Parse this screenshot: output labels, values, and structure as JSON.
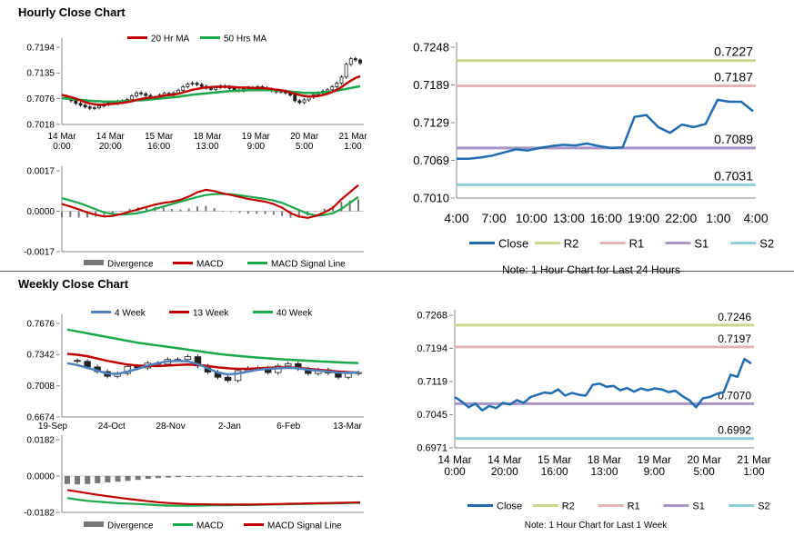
{
  "sections": {
    "hourly_title": "Hourly Close Chart",
    "weekly_title": "Weekly Close Chart"
  },
  "colors": {
    "close": "#1f6cb0",
    "r2": "#c7d98c",
    "r1": "#e5b5b5",
    "s1": "#a795c8",
    "s2": "#8fd0db",
    "ma_red": "#c00000",
    "ma_green": "#1aa84a",
    "ma_blue": "#4f81bd",
    "divergence": "#777777",
    "candle": "#222222"
  },
  "chart_data": [
    {
      "id": "hourly_price",
      "type": "candlestick",
      "legend": [
        "20 Hr MA",
        "50 Hrs MA"
      ],
      "y_ticks": [
        "0.7194",
        "0.7135",
        "0.7076",
        "0.7018"
      ],
      "ylim": [
        0.7018,
        0.7194
      ],
      "x_ticks": [
        "14 Mar\n0:00",
        "14 Mar\n20:00",
        "15 Mar\n16:00",
        "18 Mar\n13:00",
        "19 Mar\n9:00",
        "20 Mar\n5:00",
        "21 Mar\n1:00"
      ],
      "close": [
        0.7082,
        0.7078,
        0.7072,
        0.7066,
        0.7062,
        0.7058,
        0.7055,
        0.7056,
        0.706,
        0.7064,
        0.7067,
        0.7066,
        0.707,
        0.7072,
        0.7075,
        0.7083,
        0.709,
        0.7088,
        0.7084,
        0.7079,
        0.708,
        0.7085,
        0.7089,
        0.7086,
        0.709,
        0.7096,
        0.7104,
        0.711,
        0.7112,
        0.7109,
        0.7105,
        0.7101,
        0.7098,
        0.7102,
        0.7106,
        0.7104,
        0.71,
        0.7096,
        0.7095,
        0.7099,
        0.7102,
        0.71,
        0.7104,
        0.7101,
        0.7098,
        0.7095,
        0.7092,
        0.7094,
        0.709,
        0.7085,
        0.7072,
        0.7068,
        0.7074,
        0.708,
        0.7086,
        0.709,
        0.7094,
        0.7097,
        0.7104,
        0.7112,
        0.7126,
        0.7155,
        0.7168,
        0.7165,
        0.7158
      ],
      "ma20": [
        0.7085,
        0.7083,
        0.708,
        0.7077,
        0.7073,
        0.7069,
        0.7066,
        0.7064,
        0.7063,
        0.7063,
        0.7064,
        0.7065,
        0.7066,
        0.7067,
        0.7069,
        0.7071,
        0.7074,
        0.7076,
        0.7078,
        0.7079,
        0.708,
        0.7082,
        0.7084,
        0.7085,
        0.7086,
        0.7088,
        0.7091,
        0.7094,
        0.7097,
        0.7099,
        0.7101,
        0.7102,
        0.7103,
        0.7104,
        0.7104,
        0.7104,
        0.7104,
        0.7103,
        0.7102,
        0.7102,
        0.7102,
        0.7101,
        0.7101,
        0.7101,
        0.71,
        0.7099,
        0.7097,
        0.7096,
        0.7094,
        0.7091,
        0.7088,
        0.7085,
        0.7083,
        0.7082,
        0.7082,
        0.7083,
        0.7085,
        0.7088,
        0.7092,
        0.7097,
        0.7103,
        0.7111,
        0.7118,
        0.7124,
        0.7128
      ],
      "ma50": [
        0.7078,
        0.7077,
        0.7076,
        0.7075,
        0.7074,
        0.7073,
        0.7072,
        0.7071,
        0.7071,
        0.707,
        0.707,
        0.707,
        0.707,
        0.7071,
        0.7071,
        0.7072,
        0.7073,
        0.7073,
        0.7074,
        0.7075,
        0.7076,
        0.7077,
        0.7078,
        0.7079,
        0.708,
        0.7081,
        0.7083,
        0.7084,
        0.7086,
        0.7087,
        0.7088,
        0.7089,
        0.709,
        0.7091,
        0.7092,
        0.7093,
        0.7094,
        0.7094,
        0.7095,
        0.7095,
        0.7096,
        0.7096,
        0.7096,
        0.7096,
        0.7096,
        0.7096,
        0.7095,
        0.7095,
        0.7094,
        0.7093,
        0.7092,
        0.7091,
        0.709,
        0.709,
        0.709,
        0.709,
        0.7091,
        0.7092,
        0.7093,
        0.7095,
        0.7097,
        0.7099,
        0.7101,
        0.7103,
        0.7105
      ]
    },
    {
      "id": "hourly_macd",
      "type": "macd",
      "legend": [
        "Divergence",
        "MACD",
        "MACD Signal Line"
      ],
      "y_ticks": [
        "0.0017",
        "0.0000",
        "-0.0017"
      ],
      "ylim": [
        -0.0017,
        0.0017
      ],
      "macd": [
        0.0003,
        0.0002,
        8e-05,
        -5e-05,
        -0.00015,
        -0.00022,
        -0.0002,
        -0.00012,
        -2e-05,
        8e-05,
        0.00018,
        0.00028,
        0.00035,
        0.0004,
        0.00048,
        0.00062,
        0.0008,
        0.0009,
        0.00085,
        0.00075,
        0.00068,
        0.0006,
        0.00052,
        0.00046,
        0.0004,
        0.0003,
        0.00015,
        -8e-05,
        -0.00022,
        -0.00028,
        -0.0002,
        -5e-05,
        0.00015,
        0.0005,
        0.0008,
        0.0011
      ],
      "signal": [
        0.00055,
        0.00045,
        0.00035,
        0.00022,
        8e-05,
        -5e-05,
        -0.00012,
        -0.00014,
        -0.00012,
        -8e-05,
        0.0,
        0.0001,
        0.0002,
        0.0003,
        0.0004,
        0.0005,
        0.0006,
        0.00068,
        0.00072,
        0.00073,
        0.00071,
        0.00067,
        0.00062,
        0.00057,
        0.00052,
        0.00045,
        0.00035,
        0.0002,
        5e-05,
        -0.0001,
        -0.00018,
        -0.00016,
        -8e-05,
        0.0001,
        0.00035,
        0.0006
      ]
    },
    {
      "id": "hourly_line",
      "type": "line",
      "y_ticks": [
        "0.7248",
        "0.7189",
        "0.7129",
        "0.7069",
        "0.7010"
      ],
      "ylim": [
        0.701,
        0.7248
      ],
      "x_ticks": [
        "4:00",
        "7:00",
        "10:00",
        "13:00",
        "16:00",
        "19:00",
        "22:00",
        "1:00",
        "4:00"
      ],
      "close": [
        0.7072,
        0.7072,
        0.7074,
        0.7077,
        0.7082,
        0.7087,
        0.7085,
        0.7089,
        0.7092,
        0.7094,
        0.7093,
        0.7096,
        0.7092,
        0.7089,
        0.709,
        0.7138,
        0.7141,
        0.7122,
        0.7113,
        0.7126,
        0.7122,
        0.7127,
        0.7165,
        0.7162,
        0.7162,
        0.7147
      ],
      "levels": [
        {
          "name": "R2",
          "value": "0.7227"
        },
        {
          "name": "R1",
          "value": "0.7187"
        },
        {
          "name": "S1",
          "value": "0.7089"
        },
        {
          "name": "S2",
          "value": "0.7031"
        }
      ],
      "legend": [
        "Close",
        "R2",
        "R1",
        "S1",
        "S2"
      ],
      "note": "Note: 1 Hour Chart for Last 24 Hours"
    },
    {
      "id": "weekly_price",
      "type": "candlestick",
      "legend": [
        "4 Week",
        "13 Week",
        "40 Week"
      ],
      "y_ticks": [
        "0.7676",
        "0.7342",
        "0.7008",
        "0.6674"
      ],
      "ylim": [
        0.6674,
        0.7676
      ],
      "x_ticks": [
        "19-Sep",
        "24-Oct",
        "28-Nov",
        "2-Jan",
        "6-Feb",
        "13-Mar"
      ],
      "close": [
        0.728,
        0.727,
        0.721,
        0.716,
        0.711,
        0.714,
        0.7215,
        0.72,
        0.725,
        0.724,
        0.729,
        0.729,
        0.732,
        0.722,
        0.7155,
        0.71,
        0.7065,
        0.717,
        0.7195,
        0.72,
        0.715,
        0.722,
        0.7245,
        0.719,
        0.714,
        0.718,
        0.7145,
        0.71,
        0.7138,
        0.715
      ],
      "ma4": [
        0.725,
        0.723,
        0.72,
        0.717,
        0.714,
        0.7135,
        0.716,
        0.719,
        0.7225,
        0.725,
        0.727,
        0.7275,
        0.727,
        0.724,
        0.7195,
        0.715,
        0.713,
        0.714,
        0.716,
        0.718,
        0.719,
        0.7195,
        0.72,
        0.7195,
        0.718,
        0.717,
        0.716,
        0.715,
        0.7148,
        0.715
      ],
      "ma13": [
        0.735,
        0.734,
        0.7325,
        0.73,
        0.7275,
        0.7255,
        0.7235,
        0.7225,
        0.722,
        0.722,
        0.7225,
        0.723,
        0.7235,
        0.723,
        0.722,
        0.7205,
        0.7195,
        0.719,
        0.719,
        0.7195,
        0.72,
        0.7205,
        0.7205,
        0.72,
        0.719,
        0.718,
        0.717,
        0.716,
        0.7155,
        0.715
      ],
      "ma40": [
        0.761,
        0.759,
        0.757,
        0.755,
        0.753,
        0.751,
        0.749,
        0.747,
        0.7455,
        0.744,
        0.7425,
        0.741,
        0.7395,
        0.738,
        0.7365,
        0.735,
        0.7338,
        0.7328,
        0.7318,
        0.731,
        0.7302,
        0.7295,
        0.7288,
        0.7282,
        0.7276,
        0.727,
        0.7265,
        0.726,
        0.7255,
        0.7252
      ]
    },
    {
      "id": "weekly_macd",
      "type": "macd",
      "legend": [
        "Divergence",
        "MACD",
        "MACD Signal Line"
      ],
      "y_ticks": [
        "0.0182",
        "0.0000",
        "-0.0182"
      ],
      "ylim": [
        -0.0182,
        0.0182
      ],
      "divergence": [
        -0.004,
        -0.0042,
        -0.004,
        -0.0036,
        -0.0032,
        -0.0028,
        -0.0024,
        -0.0019,
        -0.0014,
        -0.001,
        -0.0007,
        -0.0005,
        -0.0004,
        -0.0003,
        -0.0003,
        -0.0002,
        -0.0002,
        -0.0002,
        -0.0001,
        -0.0001,
        -0.0001,
        -0.0001,
        -0.0001,
        -0.0001,
        -0.0001,
        -0.0001,
        -0.0001,
        -0.0001,
        -0.0001,
        -0.0001
      ],
      "macd": [
        -0.011,
        -0.0118,
        -0.0124,
        -0.0128,
        -0.0132,
        -0.0136,
        -0.0138,
        -0.014,
        -0.0143,
        -0.0146,
        -0.0148,
        -0.0149,
        -0.0149,
        -0.0148,
        -0.0147,
        -0.0146,
        -0.0146,
        -0.0145,
        -0.0145,
        -0.0144,
        -0.0143,
        -0.0142,
        -0.0141,
        -0.014,
        -0.0139,
        -0.0138,
        -0.0137,
        -0.0136,
        -0.0135,
        -0.0134
      ],
      "signal": [
        -0.007,
        -0.0078,
        -0.0086,
        -0.0094,
        -0.0101,
        -0.0108,
        -0.0114,
        -0.012,
        -0.0126,
        -0.0131,
        -0.0135,
        -0.0138,
        -0.014,
        -0.0141,
        -0.0142,
        -0.0143,
        -0.0143,
        -0.0143,
        -0.0143,
        -0.0142,
        -0.0141,
        -0.014,
        -0.0139,
        -0.0138,
        -0.0137,
        -0.0136,
        -0.0135,
        -0.0134,
        -0.0133,
        -0.0132
      ]
    },
    {
      "id": "weekly_line",
      "type": "line",
      "y_ticks": [
        "0.7268",
        "0.7194",
        "0.7119",
        "0.7045",
        "0.6971"
      ],
      "ylim": [
        0.6971,
        0.7268
      ],
      "x_ticks": [
        "14 Mar\n0:00",
        "14 Mar\n20:00",
        "15 Mar\n16:00",
        "18 Mar\n13:00",
        "19 Mar\n9:00",
        "20 Mar\n5:00",
        "21 Mar\n1:00"
      ],
      "close": [
        0.7085,
        0.7075,
        0.7062,
        0.707,
        0.7055,
        0.7065,
        0.706,
        0.7072,
        0.7068,
        0.7078,
        0.7072,
        0.7085,
        0.709,
        0.7095,
        0.7093,
        0.7102,
        0.7088,
        0.7094,
        0.709,
        0.7088,
        0.7112,
        0.7115,
        0.7108,
        0.711,
        0.71,
        0.7105,
        0.7097,
        0.7104,
        0.71,
        0.7104,
        0.7102,
        0.7096,
        0.7099,
        0.7087,
        0.7078,
        0.7062,
        0.7082,
        0.7085,
        0.7092,
        0.7096,
        0.7135,
        0.713,
        0.717,
        0.716
      ],
      "levels": [
        {
          "name": "R2",
          "value": "0.7246"
        },
        {
          "name": "R1",
          "value": "0.7197"
        },
        {
          "name": "S1",
          "value": "0.7070"
        },
        {
          "name": "S2",
          "value": "0.6992"
        }
      ],
      "legend": [
        "Close",
        "R2",
        "R1",
        "S1",
        "S2"
      ],
      "note": "Note: 1 Hour Chart for Last 1 Week"
    }
  ]
}
